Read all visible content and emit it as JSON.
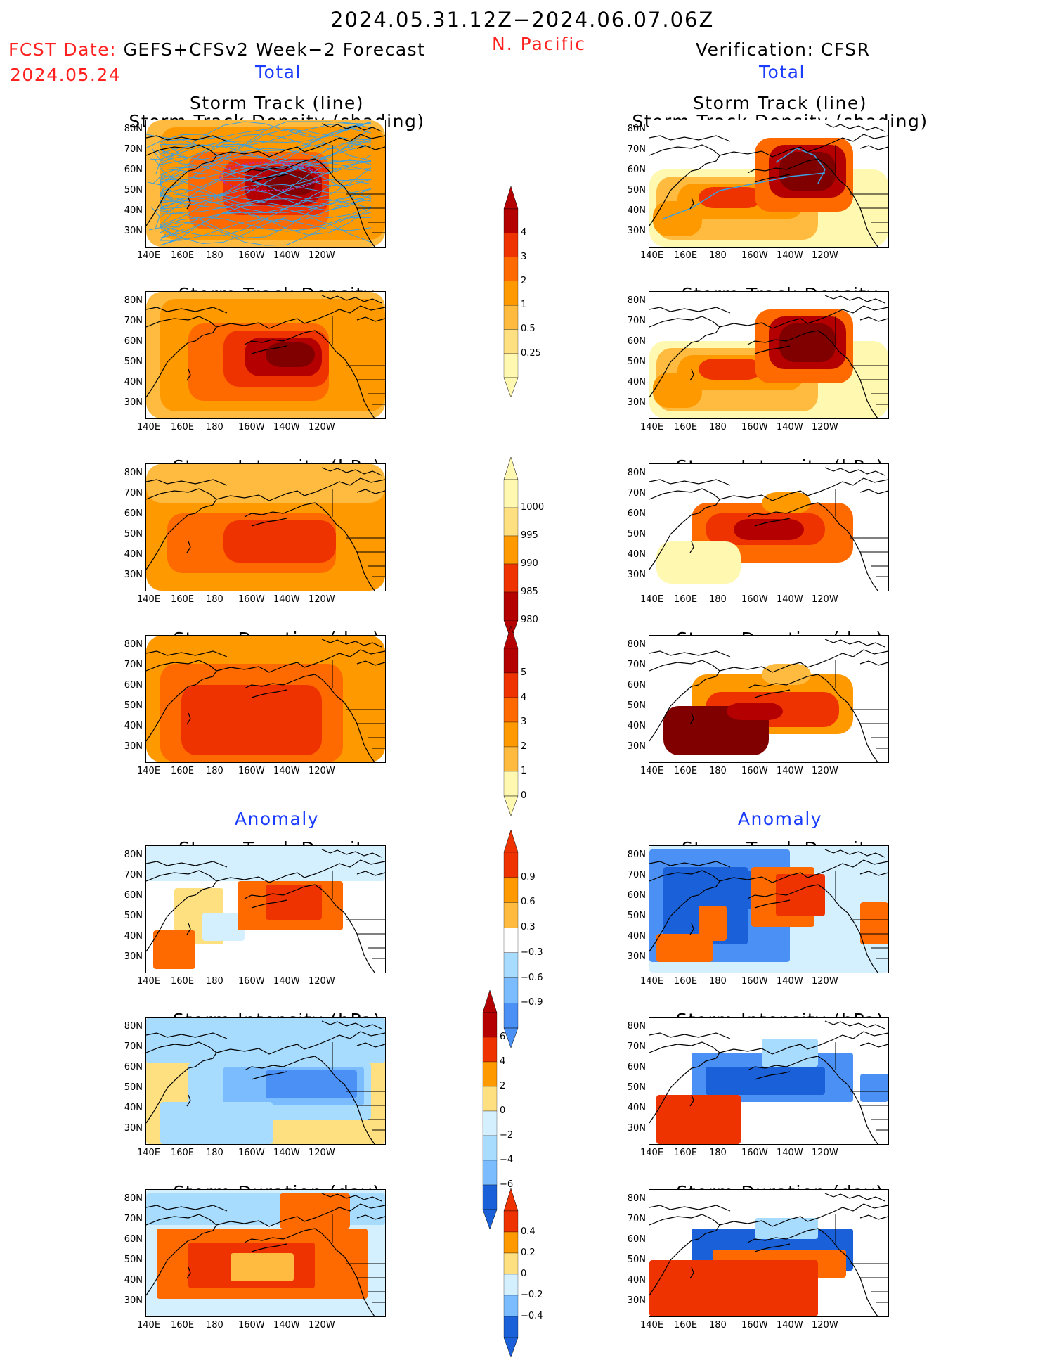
{
  "header": {
    "date_range": "2024.05.31.12Z−2024.06.07.06Z",
    "region": "N. Pacific",
    "fcst_date_label": "FCST Date:",
    "fcst_model": "GEFS+CFSv2 Week−2 Forecast",
    "fcst_date": "2024.05.24",
    "verification": "Verification: CFSR",
    "left_total": "Total",
    "right_total": "Total",
    "left_anomaly": "Anomaly",
    "right_anomaly": "Anomaly"
  },
  "panel_titles": {
    "track_line": "Storm Track (line)",
    "track_density_shading": "Storm Track Density (shading)",
    "track_density": "Storm Track Density",
    "intensity": "Storm Intensity (hPa)",
    "duration": "Storm Duration (day)"
  },
  "axes": {
    "lat_labels": [
      "80N",
      "70N",
      "60N",
      "50N",
      "40N",
      "30N"
    ],
    "lon_labels": [
      "140E",
      "160E",
      "180",
      "160W",
      "140W",
      "120W"
    ]
  },
  "colorbars": {
    "density_total": [
      "4",
      "3",
      "2",
      "1",
      "0.5",
      "0.25"
    ],
    "intensity_total": [
      "1000",
      "995",
      "990",
      "985",
      "980"
    ],
    "duration_total": [
      "5",
      "4",
      "3",
      "2",
      "1",
      "0"
    ],
    "density_anom": [
      "0.9",
      "0.6",
      "0.3",
      "−0.3",
      "−0.6",
      "−0.9"
    ],
    "intensity_anom": [
      "6",
      "4",
      "2",
      "0",
      "−2",
      "−4",
      "−6"
    ],
    "duration_anom": [
      "0.4",
      "0.2",
      "0",
      "−0.2",
      "−0.4"
    ]
  },
  "palette": {
    "warm": [
      "#fff8b0",
      "#ffe080",
      "#ffbb40",
      "#ff9900",
      "#ff6a00",
      "#ee3300",
      "#b40000",
      "#800000"
    ],
    "cool": [
      "#d4f0ff",
      "#a8dcff",
      "#7bbcff",
      "#4a90f5",
      "#1a60d8"
    ],
    "track_line": "#3ba0e0"
  }
}
